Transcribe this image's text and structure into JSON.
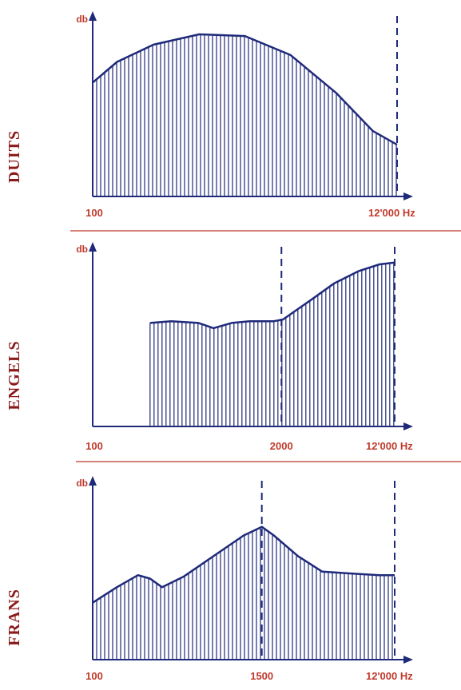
{
  "colors": {
    "ink": "#1f2a7a",
    "label_red": "#c0392b",
    "lang_red": "#8b1a1a",
    "separator": "#c0392b"
  },
  "chart_data": [
    {
      "type": "area",
      "panel_label": "DUITS",
      "ylabel": "db",
      "x_ticks": [
        {
          "label": "100",
          "pos": 0.0
        },
        {
          "label": "12'000 Hz",
          "pos": 1.0
        }
      ],
      "dashed_markers": [
        1.0
      ],
      "curve": [
        [
          0.0,
          0.66
        ],
        [
          0.08,
          0.78
        ],
        [
          0.2,
          0.88
        ],
        [
          0.35,
          0.94
        ],
        [
          0.5,
          0.93
        ],
        [
          0.65,
          0.82
        ],
        [
          0.8,
          0.6
        ],
        [
          0.92,
          0.38
        ],
        [
          1.0,
          0.3
        ]
      ]
    },
    {
      "type": "area",
      "panel_label": "ENGELS",
      "ylabel": "db",
      "x_ticks": [
        {
          "label": "100",
          "pos": 0.0
        },
        {
          "label": "2000",
          "pos": 0.625
        },
        {
          "label": "12'000 Hz",
          "pos": 1.0
        }
      ],
      "dashed_markers": [
        0.625,
        1.0
      ],
      "curve": [
        [
          0.19,
          0.6
        ],
        [
          0.26,
          0.61
        ],
        [
          0.35,
          0.6
        ],
        [
          0.4,
          0.57
        ],
        [
          0.46,
          0.6
        ],
        [
          0.52,
          0.61
        ],
        [
          0.6,
          0.61
        ],
        [
          0.63,
          0.62
        ],
        [
          0.72,
          0.73
        ],
        [
          0.8,
          0.83
        ],
        [
          0.88,
          0.9
        ],
        [
          0.95,
          0.94
        ],
        [
          1.0,
          0.95
        ]
      ]
    },
    {
      "type": "area",
      "panel_label": "FRANS",
      "ylabel": "db",
      "x_ticks": [
        {
          "label": "100",
          "pos": 0.0
        },
        {
          "label": "1500",
          "pos": 0.56
        },
        {
          "label": "12'000 Hz",
          "pos": 1.0
        }
      ],
      "dashed_markers": [
        0.56,
        1.0
      ],
      "curve": [
        [
          0.0,
          0.33
        ],
        [
          0.08,
          0.42
        ],
        [
          0.15,
          0.49
        ],
        [
          0.19,
          0.47
        ],
        [
          0.23,
          0.42
        ],
        [
          0.3,
          0.48
        ],
        [
          0.4,
          0.6
        ],
        [
          0.5,
          0.72
        ],
        [
          0.56,
          0.77
        ],
        [
          0.6,
          0.72
        ],
        [
          0.68,
          0.6
        ],
        [
          0.76,
          0.51
        ],
        [
          0.85,
          0.5
        ],
        [
          0.95,
          0.49
        ],
        [
          1.0,
          0.49
        ]
      ]
    }
  ]
}
